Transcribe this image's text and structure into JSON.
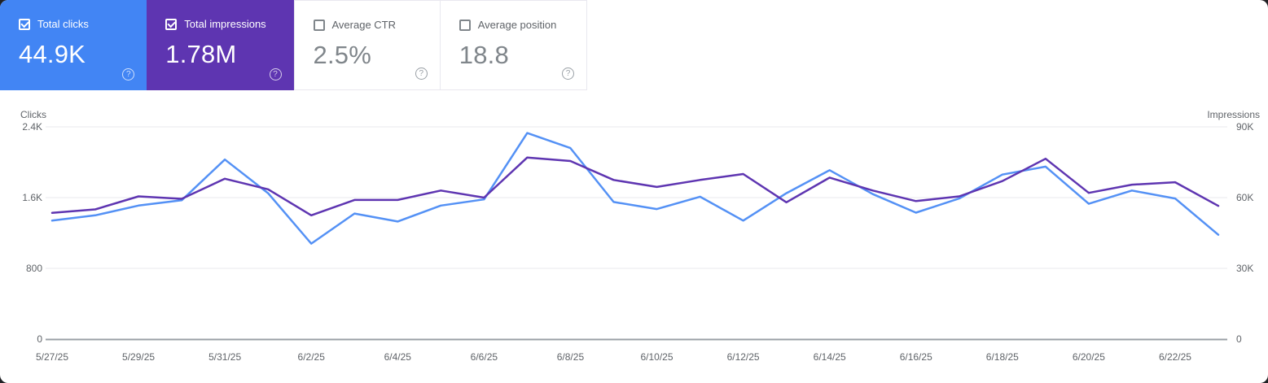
{
  "ui": {
    "help_glyph": "?"
  },
  "cards": [
    {
      "label": "Total clicks",
      "value": "44.9K",
      "checked": true,
      "bg": "#4285f4"
    },
    {
      "label": "Total impressions",
      "value": "1.78M",
      "checked": true,
      "bg": "#5e35b1"
    },
    {
      "label": "Average CTR",
      "value": "2.5%",
      "checked": false,
      "bg": null
    },
    {
      "label": "Average position",
      "value": "18.8",
      "checked": false,
      "bg": null
    }
  ],
  "chart_data": {
    "type": "line",
    "x": [
      "5/27/25",
      "5/28/25",
      "5/29/25",
      "5/30/25",
      "5/31/25",
      "6/1/25",
      "6/2/25",
      "6/3/25",
      "6/4/25",
      "6/5/25",
      "6/6/25",
      "6/7/25",
      "6/8/25",
      "6/9/25",
      "6/10/25",
      "6/11/25",
      "6/12/25",
      "6/13/25",
      "6/14/25",
      "6/15/25",
      "6/16/25",
      "6/17/25",
      "6/18/25",
      "6/19/25",
      "6/20/25",
      "6/21/25",
      "6/22/25",
      "6/23/25"
    ],
    "x_tick_labels": [
      "5/27/25",
      "5/29/25",
      "5/31/25",
      "6/2/25",
      "6/4/25",
      "6/6/25",
      "6/8/25",
      "6/10/25",
      "6/12/25",
      "6/14/25",
      "6/16/25",
      "6/18/25",
      "6/20/25",
      "6/22/25"
    ],
    "series": [
      {
        "name": "Clicks",
        "axis": "left",
        "color": "#5491f5",
        "values": [
          1340,
          1400,
          1510,
          1570,
          2030,
          1650,
          1080,
          1420,
          1330,
          1510,
          1580,
          2330,
          2160,
          1550,
          1470,
          1610,
          1340,
          1650,
          1910,
          1640,
          1430,
          1590,
          1860,
          1950,
          1530,
          1680,
          1590,
          1180
        ]
      },
      {
        "name": "Impressions",
        "axis": "right",
        "color": "#5e35b1",
        "values": [
          53500,
          55000,
          60500,
          59500,
          68000,
          63500,
          52500,
          59000,
          59000,
          63000,
          60000,
          77000,
          75500,
          67500,
          64500,
          67500,
          70000,
          58000,
          68500,
          63000,
          58500,
          60500,
          67000,
          76500,
          62000,
          65500,
          66500,
          56500
        ]
      }
    ],
    "left_axis": {
      "title": "Clicks",
      "ticks": [
        "0",
        "800",
        "1.6K",
        "2.4K"
      ],
      "min": 0,
      "max": 2400
    },
    "right_axis": {
      "title": "Impressions",
      "ticks": [
        "0",
        "30K",
        "60K",
        "90K"
      ],
      "min": 0,
      "max": 90000
    },
    "grid": true,
    "legend_position": "none"
  },
  "colors": {
    "clicks_card": "#4285f4",
    "impressions_card": "#5e35b1",
    "clicks_line": "#5491f5",
    "impressions_line": "#5e35b1",
    "gridline": "#e8eaed",
    "axis_line": "#9aa0a6",
    "tick_text": "#5f6368"
  }
}
